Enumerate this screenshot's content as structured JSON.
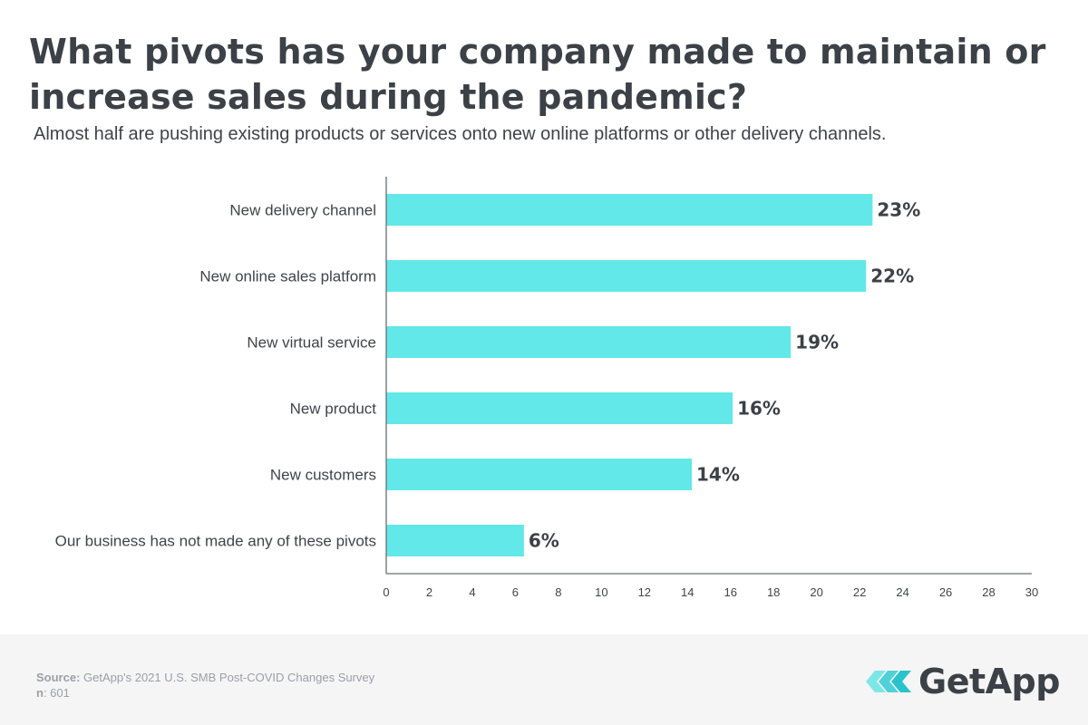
{
  "header": {
    "title": "What pivots has your company made to maintain or increase sales during the pandemic?",
    "subtitle": "Almost half are pushing existing products or services onto new online platforms or other delivery channels."
  },
  "chart_data": {
    "type": "bar",
    "orientation": "horizontal",
    "categories": [
      "New delivery channel",
      "New online sales platform",
      "New virtual service",
      "New product",
      "New customers",
      "Our business has not made any of these pivots"
    ],
    "values": [
      22.6,
      22.3,
      18.8,
      16.1,
      14.2,
      6.4
    ],
    "data_labels": [
      "23%",
      "22%",
      "19%",
      "16%",
      "14%",
      "6%"
    ],
    "xlim": [
      0,
      30
    ],
    "xticks": [
      "0",
      "2",
      "4",
      "6",
      "8",
      "10",
      "12",
      "14",
      "16",
      "18",
      "20",
      "22",
      "24",
      "26",
      "28",
      "30"
    ],
    "xlabel": "",
    "ylabel": "",
    "grid": false,
    "bar_color": "#62e8e8"
  },
  "footer": {
    "source_label": "Source:",
    "source_text": "GetApp's 2021 U.S. SMB Post-COVID Changes Survey",
    "n_label": "n",
    "n_text": ": 601",
    "logo_text": "GetApp",
    "logo_icon": "getapp-chevrons-icon",
    "logo_colors": [
      "#4fd1d9",
      "#7ee6e6"
    ]
  }
}
